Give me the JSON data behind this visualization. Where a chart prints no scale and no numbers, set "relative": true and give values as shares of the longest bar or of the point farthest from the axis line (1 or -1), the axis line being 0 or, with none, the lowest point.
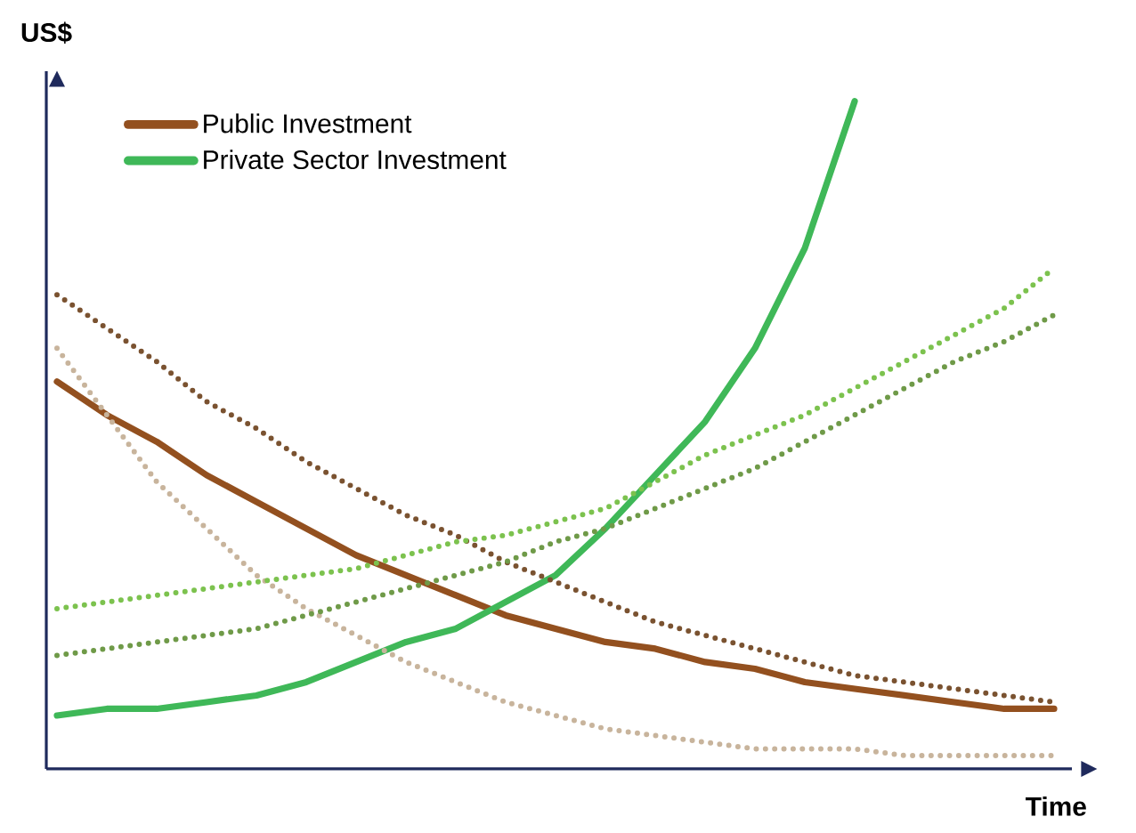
{
  "chart_data": {
    "type": "line",
    "relative": true,
    "xlabel": "Time",
    "ylabel": "US$",
    "legend": "top left",
    "categories": [
      null,
      null,
      null,
      null,
      null,
      null,
      null,
      null,
      null,
      null,
      null,
      null,
      null,
      null,
      null,
      null,
      null,
      null,
      null,
      null,
      null
    ],
    "series": [
      {
        "name": "Public Investment",
        "color": "#93501f",
        "line_style": "solid",
        "values": [
          0.58,
          0.53,
          0.49,
          0.44,
          0.4,
          0.36,
          0.32,
          0.29,
          0.26,
          0.23,
          0.21,
          0.19,
          0.18,
          0.16,
          0.15,
          0.13,
          0.12,
          0.11,
          0.1,
          0.09,
          0.09
        ]
      },
      {
        "name": "Private Sector Investment",
        "color": "#3fb858",
        "line_style": "solid",
        "values": [
          0.08,
          0.09,
          0.09,
          0.1,
          0.11,
          0.13,
          0.16,
          0.19,
          0.21,
          0.25,
          0.29,
          0.36,
          0.44,
          0.52,
          0.63,
          0.78,
          1.0,
          null,
          null,
          null,
          null
        ]
      },
      {
        "color": "#7a5230",
        "line_style": "dotted",
        "values": [
          0.71,
          0.66,
          0.61,
          0.55,
          0.51,
          0.46,
          0.42,
          0.38,
          0.35,
          0.31,
          0.28,
          0.25,
          0.22,
          0.2,
          0.18,
          0.16,
          0.14,
          0.13,
          0.12,
          0.11,
          0.1
        ]
      },
      {
        "color": "#c8b49c",
        "line_style": "dotted",
        "values": [
          0.63,
          0.53,
          0.43,
          0.36,
          0.29,
          0.24,
          0.2,
          0.16,
          0.13,
          0.1,
          0.08,
          0.06,
          0.05,
          0.04,
          0.03,
          0.03,
          0.03,
          0.02,
          0.02,
          0.02,
          0.02
        ]
      },
      {
        "color": "#7cc24e",
        "line_style": "dotted",
        "values": [
          0.24,
          0.25,
          0.26,
          0.27,
          0.28,
          0.29,
          0.3,
          0.32,
          0.34,
          0.35,
          0.37,
          0.39,
          0.43,
          0.47,
          0.5,
          0.53,
          0.57,
          0.61,
          0.65,
          0.69,
          0.75
        ]
      },
      {
        "color": "#6f9a48",
        "line_style": "dotted",
        "values": [
          0.17,
          0.18,
          0.19,
          0.2,
          0.21,
          0.23,
          0.25,
          0.27,
          0.29,
          0.31,
          0.34,
          0.36,
          0.39,
          0.42,
          0.45,
          0.49,
          0.53,
          0.57,
          0.61,
          0.64,
          0.68
        ]
      }
    ]
  }
}
